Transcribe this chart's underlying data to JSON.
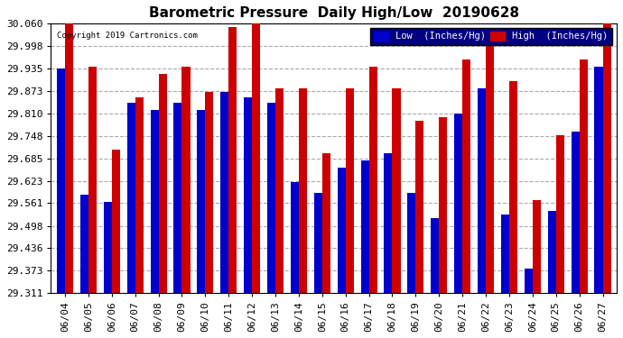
{
  "title": "Barometric Pressure  Daily High/Low  20190628",
  "copyright": "Copyright 2019 Cartronics.com",
  "dates": [
    "06/04",
    "06/05",
    "06/06",
    "06/07",
    "06/08",
    "06/09",
    "06/10",
    "06/11",
    "06/12",
    "06/13",
    "06/14",
    "06/15",
    "06/16",
    "06/17",
    "06/18",
    "06/19",
    "06/20",
    "06/21",
    "06/22",
    "06/23",
    "06/24",
    "06/25",
    "06/26",
    "06/27"
  ],
  "low_values": [
    29.935,
    29.585,
    29.565,
    29.84,
    29.82,
    29.84,
    29.82,
    29.87,
    29.855,
    29.84,
    29.62,
    29.59,
    29.66,
    29.68,
    29.7,
    29.59,
    29.52,
    29.81,
    29.88,
    29.53,
    29.38,
    29.54,
    29.76,
    29.94
  ],
  "high_values": [
    30.06,
    29.94,
    29.71,
    29.855,
    29.92,
    29.94,
    29.87,
    30.05,
    30.06,
    29.88,
    29.88,
    29.7,
    29.88,
    29.94,
    29.88,
    29.79,
    29.8,
    29.96,
    30.0,
    29.9,
    29.57,
    29.75,
    29.96,
    30.06
  ],
  "ylim_min": 29.311,
  "ylim_max": 30.06,
  "yticks": [
    29.311,
    29.373,
    29.436,
    29.498,
    29.561,
    29.623,
    29.685,
    29.748,
    29.81,
    29.873,
    29.935,
    29.998,
    30.06
  ],
  "bar_color_low": "#0000cc",
  "bar_color_high": "#cc0000",
  "background_color": "#ffffff",
  "plot_bg_color": "#ffffff",
  "grid_color": "#aaaaaa",
  "title_fontsize": 11,
  "tick_fontsize": 8,
  "legend_low_label": "Low  (Inches/Hg)",
  "legend_high_label": "High  (Inches/Hg)",
  "legend_bg_color": "#000080",
  "bar_width": 0.35
}
